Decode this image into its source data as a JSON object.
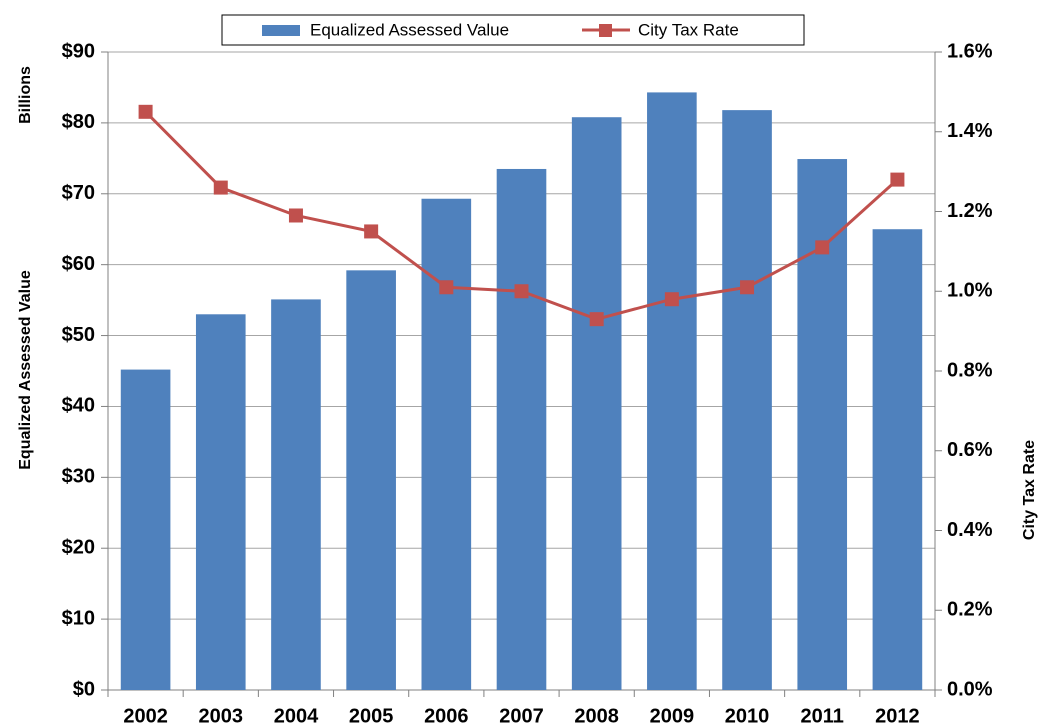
{
  "chart_data": {
    "type": "bar_line",
    "y_label": "Equalized Assessed Value",
    "y_unit_label": "Billions",
    "y2_label": "City Tax Rate",
    "categories": [
      "2002",
      "2003",
      "2004",
      "2005",
      "2006",
      "2007",
      "2008",
      "2009",
      "2010",
      "2011",
      "2012"
    ],
    "series": [
      {
        "name": "Equalized Assessed Value",
        "type": "bar",
        "color": "#4f81bd",
        "values": [
          45.2,
          53.0,
          55.1,
          59.2,
          69.3,
          73.5,
          80.8,
          84.3,
          81.8,
          74.9,
          65.0
        ]
      },
      {
        "name": "City Tax Rate",
        "type": "line",
        "axis": "y2",
        "color": "#c0504d",
        "values": [
          1.45,
          1.26,
          1.19,
          1.15,
          1.01,
          1.0,
          0.93,
          0.98,
          1.01,
          1.11,
          1.28
        ]
      }
    ],
    "ylim": [
      0,
      90
    ],
    "yticks": [
      {
        "value": 0,
        "label": "$0"
      },
      {
        "value": 10,
        "label": "$10"
      },
      {
        "value": 20,
        "label": "$20"
      },
      {
        "value": 30,
        "label": "$30"
      },
      {
        "value": 40,
        "label": "$40"
      },
      {
        "value": 50,
        "label": "$50"
      },
      {
        "value": 60,
        "label": "$60"
      },
      {
        "value": 70,
        "label": "$70"
      },
      {
        "value": 80,
        "label": "$80"
      },
      {
        "value": 90,
        "label": "$90"
      }
    ],
    "y2lim": [
      0,
      1.6
    ],
    "y2ticks": [
      {
        "value": 0,
        "label": "0.0%"
      },
      {
        "value": 0.2,
        "label": "0.2%"
      },
      {
        "value": 0.4,
        "label": "0.4%"
      },
      {
        "value": 0.6,
        "label": "0.6%"
      },
      {
        "value": 0.8,
        "label": "0.8%"
      },
      {
        "value": 1.0,
        "label": "1.0%"
      },
      {
        "value": 1.2,
        "label": "1.2%"
      },
      {
        "value": 1.4,
        "label": "1.4%"
      },
      {
        "value": 1.6,
        "label": "1.6%"
      }
    ],
    "grid": true,
    "legend": "top"
  }
}
